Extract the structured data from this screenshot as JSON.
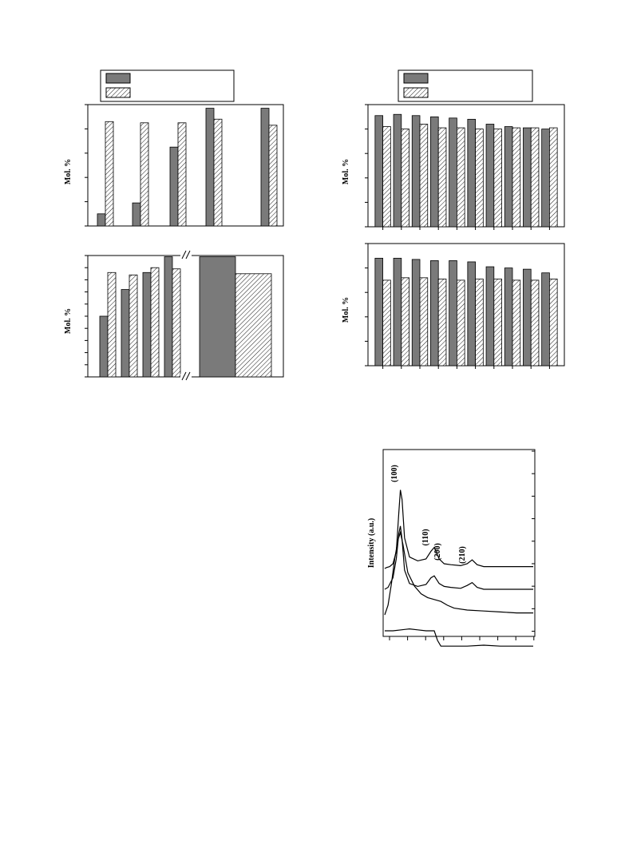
{
  "colors": {
    "solid": "#7a7a7a",
    "hatch": "#ffffff",
    "line": "#000000"
  },
  "chart_data": [
    {
      "type": "bar",
      "id": "top-left",
      "ylabel": "Mol. %",
      "ylim": [
        0,
        100
      ],
      "legend": {
        "position": "top",
        "entries": [
          "",
          ""
        ]
      },
      "groups": [
        {
          "solid": 10,
          "hatch": 86
        },
        {
          "solid": 19,
          "hatch": 85
        },
        {
          "solid": 65,
          "hatch": 85
        },
        {
          "solid": 97,
          "hatch": 88
        },
        {
          "solid": 97,
          "hatch": 83
        }
      ]
    },
    {
      "type": "bar",
      "id": "bottom-left",
      "ylabel": "Mol. %",
      "ylim": [
        0,
        100
      ],
      "axis_break": true,
      "groups": [
        {
          "solid": 50,
          "hatch": 86
        },
        {
          "solid": 72,
          "hatch": 84
        },
        {
          "solid": 86,
          "hatch": 90
        },
        {
          "solid": 99,
          "hatch": 89
        },
        {
          "solid": 99,
          "hatch": 85
        }
      ]
    },
    {
      "type": "bar",
      "id": "top-right",
      "ylabel": "Mol. %",
      "ylim": [
        0,
        100
      ],
      "legend": {
        "position": "top",
        "entries": [
          "",
          ""
        ]
      },
      "groups": [
        {
          "solid": 91,
          "hatch": 82
        },
        {
          "solid": 92,
          "hatch": 80
        },
        {
          "solid": 91,
          "hatch": 84
        },
        {
          "solid": 90,
          "hatch": 81
        },
        {
          "solid": 89,
          "hatch": 81
        },
        {
          "solid": 88,
          "hatch": 80
        },
        {
          "solid": 84,
          "hatch": 80
        },
        {
          "solid": 82,
          "hatch": 81
        },
        {
          "solid": 81,
          "hatch": 81
        },
        {
          "solid": 80,
          "hatch": 81
        }
      ]
    },
    {
      "type": "bar",
      "id": "middle-right",
      "ylabel": "Mol. %",
      "ylim": [
        0,
        100
      ],
      "groups": [
        {
          "solid": 88,
          "hatch": 70
        },
        {
          "solid": 88,
          "hatch": 72
        },
        {
          "solid": 87,
          "hatch": 72
        },
        {
          "solid": 86,
          "hatch": 71
        },
        {
          "solid": 86,
          "hatch": 70
        },
        {
          "solid": 85,
          "hatch": 71
        },
        {
          "solid": 81,
          "hatch": 71
        },
        {
          "solid": 80,
          "hatch": 70
        },
        {
          "solid": 79,
          "hatch": 70
        },
        {
          "solid": 76,
          "hatch": 71
        }
      ]
    },
    {
      "type": "line",
      "id": "xrd",
      "ylabel": "Intensity (a.u.)",
      "peak_labels": [
        "(100)",
        "(110)",
        "(200)",
        "(210)"
      ],
      "x_range": [
        1,
        10
      ],
      "series": [
        {
          "points": [
            [
              1,
              1.0
            ],
            [
              1.1,
              1.05
            ],
            [
              1.3,
              1.1
            ],
            [
              1.5,
              1.25
            ],
            [
              1.7,
              1.9
            ],
            [
              1.85,
              3.9
            ],
            [
              1.95,
              5.1
            ],
            [
              2.05,
              4.6
            ],
            [
              2.2,
              2.6
            ],
            [
              2.5,
              1.6
            ],
            [
              3.0,
              1.4
            ],
            [
              3.5,
              1.5
            ],
            [
              3.8,
              1.9
            ],
            [
              4.0,
              2.1
            ],
            [
              4.3,
              1.5
            ],
            [
              4.6,
              1.25
            ],
            [
              5.0,
              1.2
            ],
            [
              5.6,
              1.15
            ],
            [
              6.0,
              1.25
            ],
            [
              6.3,
              1.45
            ],
            [
              6.6,
              1.2
            ],
            [
              7.0,
              1.1
            ],
            [
              8.0,
              1.1
            ],
            [
              9.0,
              1.1
            ],
            [
              10,
              1.1
            ]
          ]
        },
        {
          "points": [
            [
              1,
              1.0
            ],
            [
              1.2,
              1.1
            ],
            [
              1.5,
              1.6
            ],
            [
              1.7,
              2.6
            ],
            [
              1.85,
              3.9
            ],
            [
              1.95,
              4.3
            ],
            [
              2.05,
              3.6
            ],
            [
              2.2,
              2.0
            ],
            [
              2.5,
              1.3
            ],
            [
              3.0,
              1.15
            ],
            [
              3.5,
              1.25
            ],
            [
              3.8,
              1.6
            ],
            [
              4.0,
              1.7
            ],
            [
              4.3,
              1.3
            ],
            [
              4.6,
              1.15
            ],
            [
              5.0,
              1.1
            ],
            [
              5.6,
              1.05
            ],
            [
              6.0,
              1.2
            ],
            [
              6.3,
              1.35
            ],
            [
              6.6,
              1.1
            ],
            [
              7.0,
              1.0
            ],
            [
              8.0,
              1.0
            ],
            [
              9.0,
              1.0
            ],
            [
              10,
              1.0
            ]
          ]
        },
        {
          "points": [
            [
              1,
              1.0
            ],
            [
              1.2,
              1.5
            ],
            [
              1.4,
              2.6
            ],
            [
              1.6,
              3.9
            ],
            [
              1.8,
              4.9
            ],
            [
              1.95,
              5.3
            ],
            [
              2.1,
              4.7
            ],
            [
              2.4,
              3.2
            ],
            [
              2.8,
              2.5
            ],
            [
              3.2,
              2.1
            ],
            [
              3.6,
              1.9
            ],
            [
              4.0,
              1.8
            ],
            [
              4.4,
              1.7
            ],
            [
              4.8,
              1.5
            ],
            [
              5.2,
              1.35
            ],
            [
              6.0,
              1.25
            ],
            [
              7.0,
              1.2
            ],
            [
              8.0,
              1.15
            ],
            [
              9.0,
              1.1
            ],
            [
              10,
              1.1
            ]
          ]
        },
        {
          "points": [
            [
              1,
              1.0
            ],
            [
              1.5,
              1.0
            ],
            [
              2.0,
              1.05
            ],
            [
              2.5,
              1.1
            ],
            [
              3.0,
              1.05
            ],
            [
              3.5,
              1.0
            ],
            [
              4.0,
              1.0
            ],
            [
              4.2,
              0.5
            ],
            [
              4.4,
              0.2
            ],
            [
              5.0,
              0.2
            ],
            [
              6.0,
              0.2
            ],
            [
              7.0,
              0.25
            ],
            [
              8.0,
              0.2
            ],
            [
              9.0,
              0.2
            ],
            [
              10,
              0.2
            ]
          ]
        }
      ]
    }
  ]
}
